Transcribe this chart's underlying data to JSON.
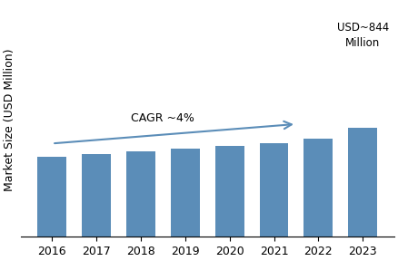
{
  "years": [
    "2016",
    "2017",
    "2018",
    "2019",
    "2020",
    "2021",
    "2022",
    "2023"
  ],
  "values": [
    615,
    640,
    658,
    678,
    700,
    722,
    760,
    844
  ],
  "bar_color": "#5b8db8",
  "ylabel": "Market Size (USD Million)",
  "cagr_text": "CAGR ~4%",
  "annotation_text": "USD~844\nMillion",
  "background_color": "#ffffff",
  "ylim": [
    0,
    1800
  ],
  "bar_width": 0.65,
  "tick_fontsize": 9,
  "ylabel_fontsize": 9
}
